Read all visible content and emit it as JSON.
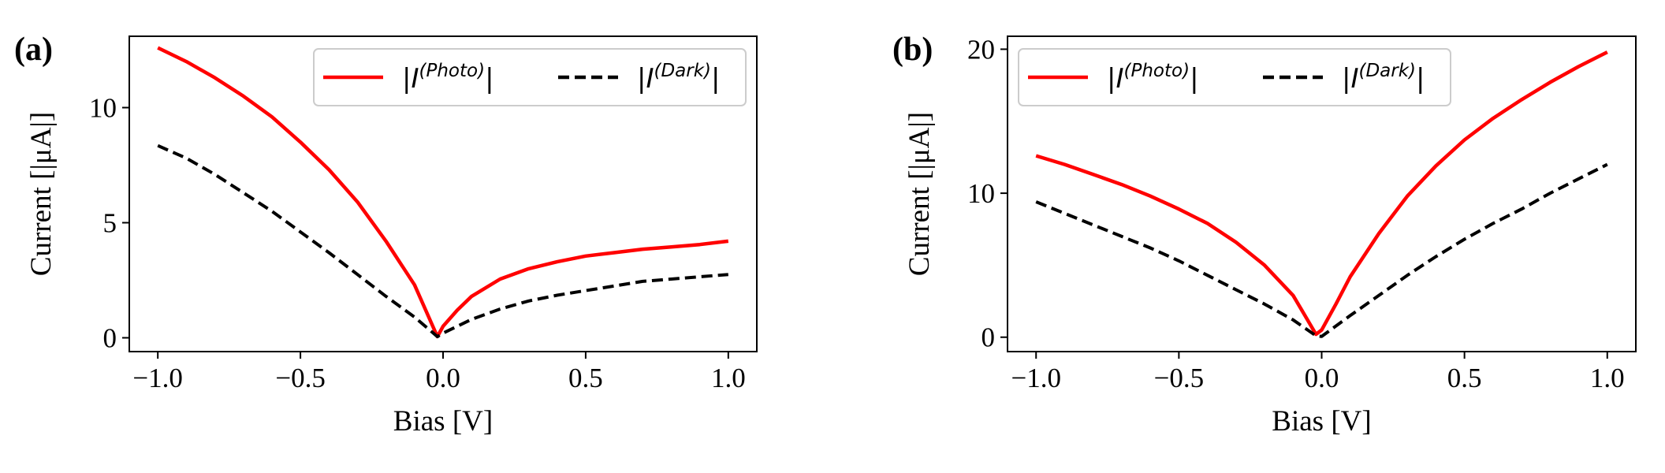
{
  "chart_data": [
    {
      "panel_label": "(a)",
      "type": "line",
      "xlabel": "Bias [V]",
      "ylabel": "Current [|μA|]",
      "xlim": [
        -1.1,
        1.1
      ],
      "ylim": [
        -0.6,
        13.1
      ],
      "xticks": [
        -1.0,
        -0.5,
        0.0,
        0.5,
        1.0
      ],
      "xtick_labels": [
        "−1.0",
        "−0.5",
        "0.0",
        "0.5",
        "1.0"
      ],
      "yticks": [
        0,
        5,
        10
      ],
      "ytick_labels": [
        "0",
        "5",
        "10"
      ],
      "legend_position": "top-right",
      "series": [
        {
          "name": "|I(Photo)|",
          "symbol": "I",
          "superscript": "(Photo)",
          "color": "#ff0000",
          "style": "solid",
          "x": [
            -1.0,
            -0.9,
            -0.8,
            -0.7,
            -0.6,
            -0.5,
            -0.4,
            -0.3,
            -0.2,
            -0.1,
            -0.02,
            0.0,
            0.05,
            0.1,
            0.2,
            0.3,
            0.4,
            0.5,
            0.6,
            0.7,
            0.8,
            0.9,
            1.0
          ],
          "y": [
            12.6,
            12.0,
            11.3,
            10.5,
            9.6,
            8.5,
            7.3,
            5.9,
            4.2,
            2.3,
            0.05,
            0.5,
            1.2,
            1.8,
            2.55,
            3.0,
            3.3,
            3.55,
            3.7,
            3.85,
            3.95,
            4.05,
            4.2
          ]
        },
        {
          "name": "|I(Dark)|",
          "symbol": "I",
          "superscript": "(Dark)",
          "color": "#000000",
          "style": "dashed",
          "x": [
            -1.0,
            -0.9,
            -0.8,
            -0.7,
            -0.6,
            -0.5,
            -0.4,
            -0.3,
            -0.2,
            -0.1,
            -0.02,
            0.0,
            0.1,
            0.2,
            0.3,
            0.4,
            0.5,
            0.6,
            0.7,
            0.8,
            0.9,
            1.0
          ],
          "y": [
            8.35,
            7.8,
            7.1,
            6.3,
            5.5,
            4.6,
            3.7,
            2.75,
            1.8,
            0.9,
            0.05,
            0.2,
            0.8,
            1.25,
            1.6,
            1.85,
            2.05,
            2.25,
            2.45,
            2.55,
            2.65,
            2.75
          ]
        }
      ]
    },
    {
      "panel_label": "(b)",
      "type": "line",
      "xlabel": "Bias [V]",
      "ylabel": "Current [|μA|]",
      "xlim": [
        -1.1,
        1.1
      ],
      "ylim": [
        -1.0,
        20.9
      ],
      "xticks": [
        -1.0,
        -0.5,
        0.0,
        0.5,
        1.0
      ],
      "xtick_labels": [
        "−1.0",
        "−0.5",
        "0.0",
        "0.5",
        "1.0"
      ],
      "yticks": [
        0,
        10,
        20
      ],
      "ytick_labels": [
        "0",
        "10",
        "20"
      ],
      "legend_position": "top-left",
      "series": [
        {
          "name": "|I(Photo)|",
          "symbol": "I",
          "superscript": "(Photo)",
          "color": "#ff0000",
          "style": "solid",
          "x": [
            -1.0,
            -0.9,
            -0.8,
            -0.7,
            -0.6,
            -0.5,
            -0.4,
            -0.3,
            -0.2,
            -0.1,
            -0.02,
            0.0,
            0.05,
            0.1,
            0.2,
            0.3,
            0.4,
            0.5,
            0.6,
            0.7,
            0.8,
            0.9,
            1.0
          ],
          "y": [
            12.6,
            12.0,
            11.3,
            10.6,
            9.8,
            8.9,
            7.9,
            6.6,
            5.0,
            2.9,
            0.2,
            0.5,
            2.3,
            4.2,
            7.2,
            9.8,
            11.9,
            13.7,
            15.2,
            16.5,
            17.7,
            18.8,
            19.8
          ]
        },
        {
          "name": "|I(Dark)|",
          "symbol": "I",
          "superscript": "(Dark)",
          "color": "#000000",
          "style": "dashed",
          "x": [
            -1.0,
            -0.9,
            -0.8,
            -0.7,
            -0.6,
            -0.5,
            -0.4,
            -0.3,
            -0.2,
            -0.1,
            -0.02,
            0.0,
            0.1,
            0.2,
            0.3,
            0.4,
            0.5,
            0.6,
            0.7,
            0.8,
            0.9,
            1.0
          ],
          "y": [
            9.4,
            8.6,
            7.8,
            7.0,
            6.2,
            5.3,
            4.3,
            3.3,
            2.3,
            1.2,
            0.1,
            0.05,
            1.5,
            2.9,
            4.3,
            5.6,
            6.8,
            7.9,
            8.9,
            10.0,
            11.0,
            12.0
          ]
        }
      ]
    }
  ]
}
